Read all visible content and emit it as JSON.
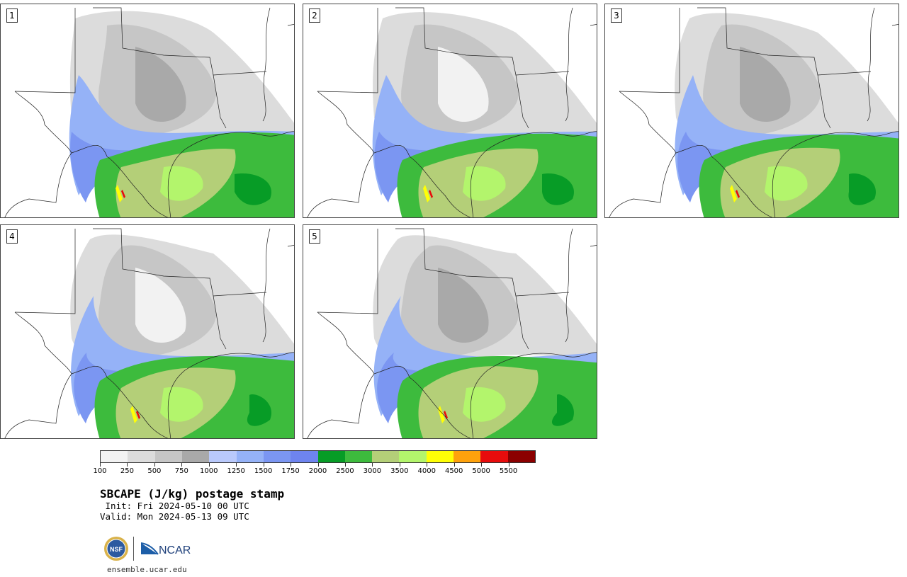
{
  "panels": [
    {
      "label": "1",
      "members": "1"
    },
    {
      "label": "2",
      "members": "2"
    },
    {
      "label": "3",
      "members": "3"
    },
    {
      "label": "4",
      "members": "4"
    },
    {
      "label": "5",
      "members": "5"
    }
  ],
  "legend": {
    "colors": [
      "#f2f2f2",
      "#dcdcdc",
      "#c6c6c6",
      "#a9a9a9",
      "#b9c9fb",
      "#95b2f7",
      "#7b96f2",
      "#6e84ef",
      "#079c26",
      "#3dbb3d",
      "#b4cf78",
      "#b3f56c",
      "#ffff06",
      "#ffa20c",
      "#e80c0c",
      "#8b0000"
    ],
    "ticks": [
      "100",
      "250",
      "500",
      "750",
      "1000",
      "1250",
      "1500",
      "1750",
      "2000",
      "2500",
      "3000",
      "3500",
      "4000",
      "4500",
      "5000",
      "5500"
    ]
  },
  "title": "SBCAPE (J/kg) postage stamp",
  "init": " Init: Fri 2024-05-10 00 UTC",
  "valid": "Valid: Mon 2024-05-13 09 UTC",
  "logos": {
    "nsf": "NSF",
    "ncar": "NCAR"
  },
  "site": "ensemble.ucar.edu"
}
